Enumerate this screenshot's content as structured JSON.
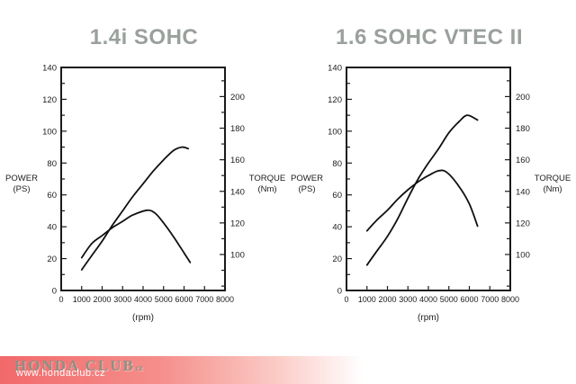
{
  "theme": {
    "title_color": "#9aa09b",
    "curve_color": "#101010",
    "axis_color": "#1a1a1a",
    "footer_gradient_from": "#f2696b",
    "footer_gradient_to": "#ffffff",
    "footer_brand_color": "#8d9084",
    "footer_url_color": "#ffffff"
  },
  "chart_data": [
    {
      "type": "line",
      "title": "1.4i SOHC",
      "xlabel": "(rpm)",
      "x_range": [
        0,
        8000
      ],
      "x_ticks": [
        0,
        1000,
        2000,
        3000,
        4000,
        5000,
        6000,
        7000,
        8000
      ],
      "left_axis": {
        "label_line1": "POWER",
        "label_line2": "(PS)",
        "range": [
          0,
          140
        ],
        "ticks": [
          0,
          20,
          40,
          60,
          80,
          100,
          120,
          140
        ],
        "minor_step": 10
      },
      "right_axis": {
        "label_line1": "TORQUE",
        "label_line2": "(Nm)",
        "ticks": [
          100,
          120,
          140,
          160,
          180,
          200
        ],
        "minor_range": [
          80,
          210
        ],
        "minor_step": 10
      },
      "grid": false,
      "legend": "none",
      "series": [
        {
          "name": "power",
          "axis": "left",
          "unit": "PS",
          "points": [
            [
              1000,
              13
            ],
            [
              1500,
              22
            ],
            [
              2000,
              31
            ],
            [
              2500,
              41
            ],
            [
              3000,
              50
            ],
            [
              3500,
              59
            ],
            [
              4000,
              67
            ],
            [
              4500,
              75
            ],
            [
              5000,
              82
            ],
            [
              5500,
              88
            ],
            [
              5900,
              90
            ],
            [
              6200,
              89
            ]
          ]
        },
        {
          "name": "torque",
          "axis": "right",
          "unit": "Nm",
          "points": [
            [
              1000,
              98
            ],
            [
              1500,
              107
            ],
            [
              2000,
              112
            ],
            [
              2500,
              117
            ],
            [
              3000,
              121
            ],
            [
              3500,
              125
            ],
            [
              4200,
              128
            ],
            [
              4600,
              126
            ],
            [
              5000,
              120
            ],
            [
              5500,
              111
            ],
            [
              6000,
              101
            ],
            [
              6300,
              95
            ]
          ]
        }
      ]
    },
    {
      "type": "line",
      "title": "1.6 SOHC VTEC II",
      "xlabel": "(rpm)",
      "x_range": [
        0,
        8000
      ],
      "x_ticks": [
        0,
        1000,
        2000,
        3000,
        4000,
        5000,
        6000,
        7000,
        8000
      ],
      "left_axis": {
        "label_line1": "POWER",
        "label_line2": "(PS)",
        "range": [
          0,
          140
        ],
        "ticks": [
          0,
          20,
          40,
          60,
          80,
          100,
          120,
          140
        ],
        "minor_step": 10
      },
      "right_axis": {
        "label_line1": "TORQUE",
        "label_line2": "(Nm)",
        "ticks": [
          100,
          120,
          140,
          160,
          180,
          200
        ],
        "minor_range": [
          80,
          210
        ],
        "minor_step": 10
      },
      "grid": false,
      "legend": "none",
      "series": [
        {
          "name": "power",
          "axis": "left",
          "unit": "PS",
          "points": [
            [
              1000,
              16
            ],
            [
              1500,
              25
            ],
            [
              2000,
              34
            ],
            [
              2500,
              45
            ],
            [
              3000,
              58
            ],
            [
              3500,
              70
            ],
            [
              4000,
              80
            ],
            [
              4500,
              89
            ],
            [
              5000,
              99
            ],
            [
              5500,
              106
            ],
            [
              5900,
              110
            ],
            [
              6400,
              107
            ]
          ]
        },
        {
          "name": "torque",
          "axis": "right",
          "unit": "Nm",
          "points": [
            [
              1000,
              115
            ],
            [
              1500,
              122
            ],
            [
              2000,
              128
            ],
            [
              2500,
              135
            ],
            [
              3000,
              141
            ],
            [
              3500,
              146
            ],
            [
              4000,
              150
            ],
            [
              4500,
              153
            ],
            [
              4900,
              152
            ],
            [
              5500,
              143
            ],
            [
              6000,
              132
            ],
            [
              6400,
              118
            ]
          ]
        }
      ]
    }
  ],
  "footer": {
    "brand": "HONDA CLUB",
    "brand_suffix": "cz",
    "url": "www.hondaclub.cz"
  }
}
